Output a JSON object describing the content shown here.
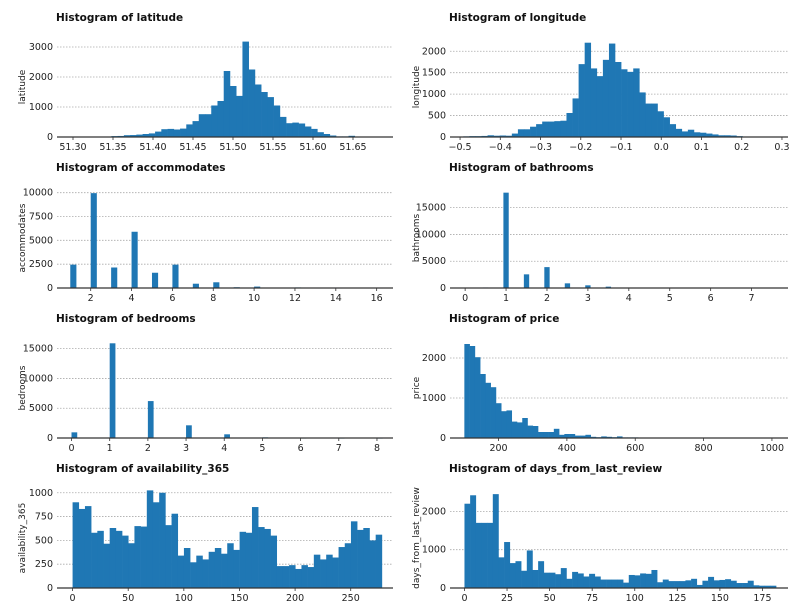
{
  "colors": {
    "bar": "#1f77b4",
    "grid": "#aaaaaa",
    "axis": "#333333"
  },
  "chart_data": [
    {
      "type": "bar",
      "title": "Histogram of latitude",
      "ylabel": "latitude",
      "xlim": [
        51.28,
        51.7
      ],
      "ylim": [
        0,
        3333
      ],
      "grid": true,
      "xticks": [
        "51.30",
        "51.35",
        "51.40",
        "51.45",
        "51.50",
        "51.55",
        "51.60",
        "51.65"
      ],
      "yticks": [
        "0",
        "1000",
        "2000",
        "3000"
      ],
      "bins": {
        "start": 51.348,
        "end": 51.66
      },
      "counts": [
        30,
        35,
        60,
        65,
        80,
        100,
        120,
        180,
        260,
        270,
        250,
        280,
        420,
        530,
        760,
        760,
        1050,
        1200,
        2200,
        1700,
        1370,
        3180,
        2250,
        1750,
        1500,
        1330,
        1050,
        670,
        460,
        480,
        450,
        350,
        270,
        160,
        100,
        50,
        20,
        20,
        40,
        15
      ]
    },
    {
      "type": "bar",
      "title": "Histogram of longitude",
      "ylabel": "longitude",
      "xlim": [
        -0.525,
        0.315
      ],
      "ylim": [
        0,
        2333
      ],
      "grid": true,
      "xticks": [
        "−0.5",
        "−0.4",
        "−0.3",
        "−0.2",
        "−0.1",
        "0.0",
        "0.1",
        "0.2",
        "0.3"
      ],
      "yticks": [
        "0",
        "500",
        "1000",
        "1500",
        "2000"
      ],
      "bins": {
        "start": -0.492,
        "end": 0.217
      },
      "counts": [
        15,
        20,
        20,
        25,
        40,
        30,
        35,
        30,
        80,
        180,
        180,
        240,
        300,
        360,
        360,
        370,
        380,
        560,
        900,
        1700,
        2200,
        1600,
        1420,
        1800,
        2180,
        1750,
        1580,
        1520,
        1600,
        1040,
        780,
        780,
        600,
        460,
        300,
        190,
        130,
        170,
        110,
        100,
        80,
        60,
        40,
        40,
        35,
        20,
        10
      ]
    },
    {
      "type": "bar",
      "title": "Histogram of accommodates",
      "ylabel": "accommodates",
      "xlim": [
        0.35,
        16.8
      ],
      "ylim": [
        0,
        10490
      ],
      "grid": true,
      "xticks": [
        "2",
        "4",
        "6",
        "8",
        "10",
        "12",
        "14",
        "16"
      ],
      "yticks": [
        "0",
        "2500",
        "5000",
        "7500",
        "10000"
      ],
      "bin_width": 0.3,
      "bin_align": "left",
      "values": [
        1,
        2,
        3,
        4,
        5,
        6,
        7,
        8,
        9,
        10,
        11,
        12,
        13,
        14,
        16
      ],
      "counts": [
        2450,
        9950,
        2150,
        5900,
        1600,
        2450,
        450,
        600,
        80,
        150,
        30,
        60,
        10,
        10,
        10
      ]
    },
    {
      "type": "bar",
      "title": "Histogram of bathrooms",
      "ylabel": "bathrooms",
      "xlim": [
        -0.37,
        7.89
      ],
      "ylim": [
        0,
        18670
      ],
      "grid": true,
      "xticks": [
        "0",
        "1",
        "2",
        "3",
        "4",
        "5",
        "6",
        "7"
      ],
      "yticks": [
        "0",
        "5000",
        "10000",
        "15000"
      ],
      "bin_width": 0.13,
      "bin_align": "center",
      "values": [
        0,
        0.5,
        1,
        1.5,
        2,
        2.5,
        3,
        3.5,
        4
      ],
      "counts": [
        30,
        100,
        17800,
        2550,
        3900,
        870,
        500,
        250,
        20
      ]
    },
    {
      "type": "bar",
      "title": "Histogram of bedrooms",
      "ylabel": "bedrooms",
      "xlim": [
        -0.38,
        8.42
      ],
      "ylim": [
        0,
        16790
      ],
      "grid": true,
      "xticks": [
        "0",
        "1",
        "2",
        "3",
        "4",
        "5",
        "6",
        "7",
        "8"
      ],
      "yticks": [
        "0",
        "5000",
        "10000",
        "15000"
      ],
      "bin_width": 0.15,
      "bin_align": "left",
      "values": [
        0,
        1,
        2,
        3,
        4,
        5,
        6,
        7,
        8
      ],
      "counts": [
        950,
        15900,
        6200,
        2130,
        620,
        110,
        10,
        5,
        5
      ]
    },
    {
      "type": "bar",
      "title": "Histogram of price",
      "ylabel": "price",
      "xlim": [
        58,
        1047
      ],
      "ylim": [
        0,
        2500
      ],
      "grid": true,
      "xticks": [
        "200",
        "400",
        "600",
        "800",
        "1000"
      ],
      "yticks": [
        "0",
        "1000",
        "2000"
      ],
      "bins": {
        "start": 100,
        "end": 716
      },
      "counts": [
        2350,
        2300,
        2020,
        1600,
        1380,
        1270,
        870,
        670,
        690,
        410,
        390,
        500,
        310,
        300,
        150,
        150,
        150,
        230,
        80,
        100,
        100,
        60,
        60,
        80,
        30,
        20,
        40,
        30,
        20,
        40,
        15,
        15,
        15,
        10,
        10,
        5,
        10,
        5,
        5,
        10
      ]
    },
    {
      "type": "bar",
      "title": "Histogram of availability_365",
      "ylabel": "availability_365",
      "xlim": [
        -14,
        288
      ],
      "ylim": [
        0,
        1050
      ],
      "grid": true,
      "xticks": [
        "0",
        "50",
        "100",
        "150",
        "200",
        "250"
      ],
      "yticks": [
        "0",
        "250",
        "500",
        "750",
        "1000"
      ],
      "bins": {
        "start": 0,
        "end": 278
      },
      "counts": [
        900,
        830,
        860,
        580,
        600,
        465,
        630,
        600,
        550,
        470,
        650,
        645,
        1025,
        900,
        1000,
        660,
        780,
        340,
        420,
        270,
        340,
        300,
        380,
        420,
        360,
        470,
        400,
        590,
        580,
        850,
        640,
        620,
        550,
        230,
        230,
        240,
        200,
        240,
        220,
        350,
        300,
        350,
        320,
        430,
        470,
        700,
        610,
        630,
        500,
        560
      ]
    },
    {
      "type": "bar",
      "title": "Histogram of days_from_last_review",
      "ylabel": "days_from_last_review",
      "xlim": [
        -8.5,
        190
      ],
      "ylim": [
        0,
        2610
      ],
      "grid": true,
      "xticks": [
        "0",
        "25",
        "50",
        "75",
        "100",
        "125",
        "150",
        "175"
      ],
      "yticks": [
        "0",
        "1000",
        "2000"
      ],
      "bins": {
        "start": 0,
        "end": 183
      },
      "counts": [
        2200,
        2420,
        1700,
        1700,
        1700,
        2450,
        800,
        1200,
        650,
        700,
        450,
        980,
        470,
        700,
        400,
        400,
        360,
        520,
        240,
        420,
        380,
        300,
        370,
        300,
        220,
        220,
        220,
        220,
        140,
        340,
        330,
        380,
        370,
        470,
        150,
        220,
        180,
        180,
        180,
        200,
        240,
        80,
        190,
        290,
        200,
        210,
        230,
        190,
        130,
        130,
        190,
        70,
        60,
        60,
        60
      ]
    }
  ]
}
